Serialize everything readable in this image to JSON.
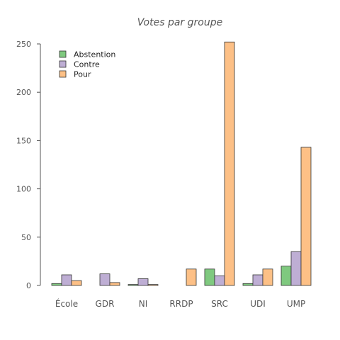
{
  "chart_data": {
    "type": "bar",
    "title": "Votes par groupe",
    "xlabel": "",
    "ylabel": "",
    "categories": [
      "École",
      "GDR",
      "NI",
      "RRDP",
      "SRC",
      "UDI",
      "UMP"
    ],
    "series": [
      {
        "name": "Abstention",
        "color": "#7fc97f",
        "values": [
          2,
          0,
          1,
          0,
          17,
          2,
          20
        ]
      },
      {
        "name": "Contre",
        "color": "#beaed4",
        "values": [
          11,
          12,
          7,
          0,
          10,
          11,
          35
        ]
      },
      {
        "name": "Pour",
        "color": "#fdc086",
        "values": [
          5,
          3,
          1,
          17,
          252,
          17,
          143
        ]
      }
    ],
    "ylim": [
      0,
      250
    ],
    "yticks": [
      0,
      50,
      100,
      150,
      200,
      250
    ],
    "grid": false,
    "legend_position": "top-left"
  }
}
